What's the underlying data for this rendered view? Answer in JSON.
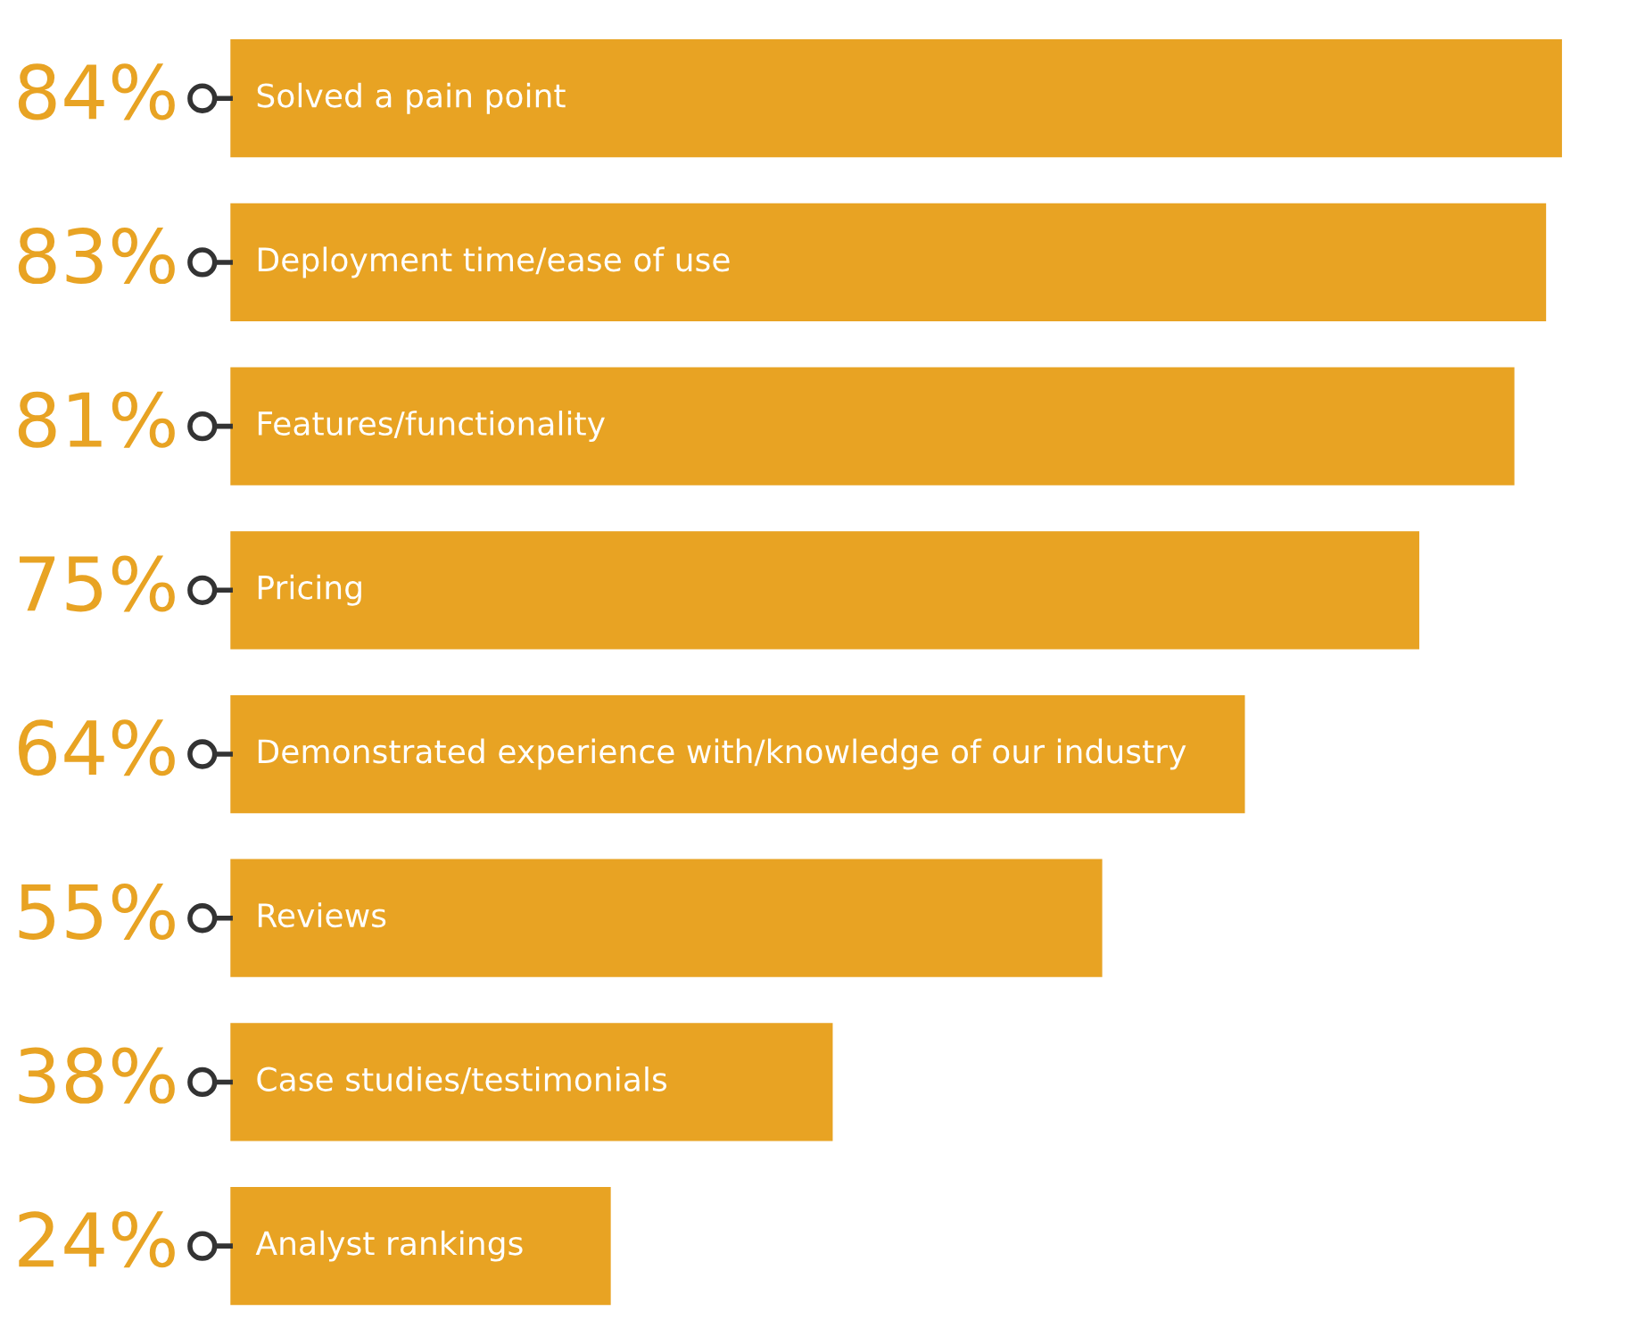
{
  "chart_data": {
    "type": "bar",
    "orientation": "horizontal",
    "categories": [
      "Solved a pain point",
      "Deployment time/ease of use",
      "Features/functionality",
      "Pricing",
      "Demonstrated experience with/knowledge of our industry",
      "Reviews",
      "Case studies/testimonials",
      "Analyst rankings"
    ],
    "values": [
      84,
      83,
      81,
      75,
      64,
      55,
      38,
      24
    ],
    "value_labels": [
      "84%",
      "83%",
      "81%",
      "75%",
      "64%",
      "55%",
      "38%",
      "24%"
    ],
    "color": "#e8a323"
  }
}
